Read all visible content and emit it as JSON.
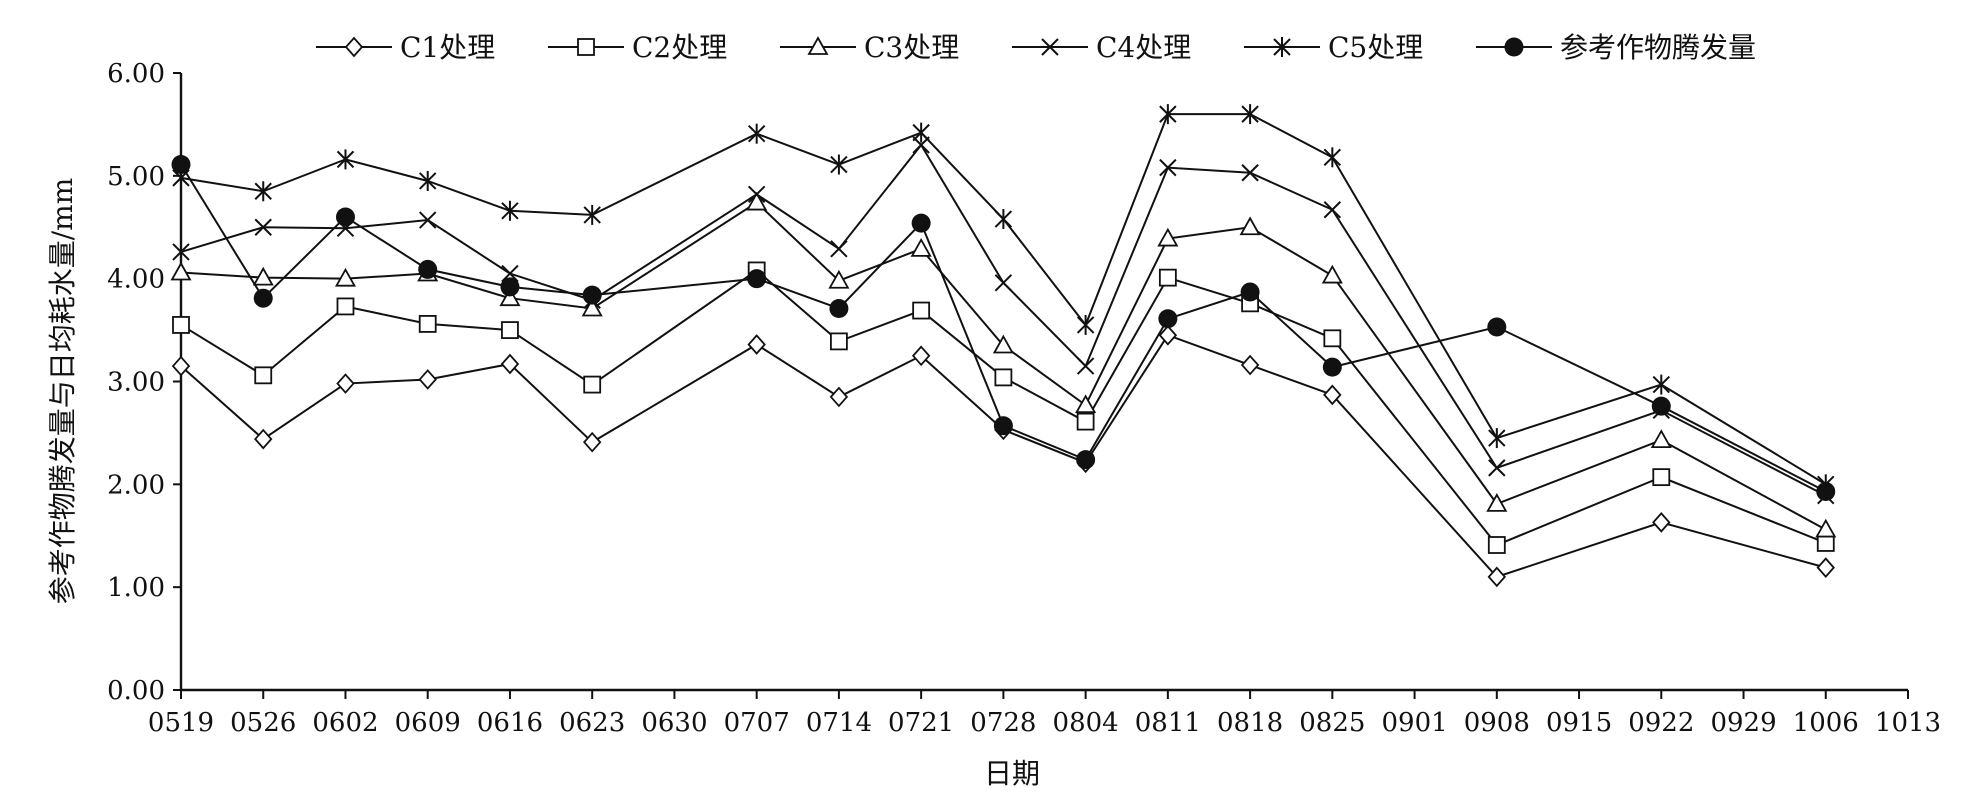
{
  "chart_data": {
    "type": "line",
    "title": "",
    "xlabel": "日期",
    "ylabel": "参考作物腾发量与日均耗水量/mm",
    "categories": [
      "0519",
      "0526",
      "0602",
      "0609",
      "0616",
      "0623",
      "0630",
      "0707",
      "0714",
      "0721",
      "0728",
      "0804",
      "0811",
      "0818",
      "0825",
      "0901",
      "0908",
      "0915",
      "0922",
      "0929",
      "1006",
      "1013"
    ],
    "y_ticks": [
      "0.00",
      "1.00",
      "2.00",
      "3.00",
      "4.00",
      "5.00",
      "6.00"
    ],
    "ylim": [
      0,
      6
    ],
    "grid": false,
    "legend_position": "top",
    "series": [
      {
        "name": "C1处理",
        "marker": "diamond",
        "x": [
          "0519",
          "0526",
          "0602",
          "0609",
          "0616",
          "0623",
          "0707",
          "0714",
          "0721",
          "0728",
          "0804",
          "0811",
          "0818",
          "0825",
          "0908",
          "0922",
          "1006"
        ],
        "values": [
          3.15,
          2.44,
          2.98,
          3.02,
          3.17,
          2.41,
          3.36,
          2.85,
          3.25,
          2.53,
          2.21,
          3.45,
          3.16,
          2.87,
          1.1,
          1.63,
          1.19
        ]
      },
      {
        "name": "C2处理",
        "marker": "square",
        "x": [
          "0519",
          "0526",
          "0602",
          "0609",
          "0616",
          "0623",
          "0707",
          "0714",
          "0721",
          "0728",
          "0804",
          "0811",
          "0818",
          "0825",
          "0908",
          "0922",
          "1006"
        ],
        "values": [
          3.55,
          3.06,
          3.73,
          3.56,
          3.5,
          2.97,
          4.08,
          3.39,
          3.69,
          3.04,
          2.61,
          4.01,
          3.76,
          3.42,
          1.41,
          2.07,
          1.43
        ]
      },
      {
        "name": "C3处理",
        "marker": "triangle",
        "x": [
          "0519",
          "0526",
          "0602",
          "0609",
          "0616",
          "0623",
          "0707",
          "0714",
          "0721",
          "0728",
          "0804",
          "0811",
          "0818",
          "0825",
          "0908",
          "0922",
          "1006"
        ],
        "values": [
          4.06,
          4.01,
          4.0,
          4.05,
          3.81,
          3.71,
          4.74,
          3.98,
          4.29,
          3.35,
          2.77,
          4.39,
          4.5,
          4.03,
          1.81,
          2.43,
          1.56
        ]
      },
      {
        "name": "C4处理",
        "marker": "x",
        "x": [
          "0519",
          "0526",
          "0602",
          "0609",
          "0616",
          "0623",
          "0707",
          "0714",
          "0721",
          "0728",
          "0804",
          "0811",
          "0818",
          "0825",
          "0908",
          "0922",
          "1006"
        ],
        "values": [
          4.26,
          4.5,
          4.49,
          4.57,
          4.05,
          3.79,
          4.82,
          4.29,
          5.3,
          3.96,
          3.15,
          5.08,
          5.03,
          4.67,
          2.16,
          2.72,
          1.89
        ]
      },
      {
        "name": "C5处理",
        "marker": "asterisk",
        "x": [
          "0519",
          "0526",
          "0602",
          "0609",
          "0616",
          "0623",
          "0707",
          "0714",
          "0721",
          "0728",
          "0804",
          "0811",
          "0818",
          "0825",
          "0908",
          "0922",
          "1006"
        ],
        "values": [
          4.98,
          4.85,
          5.16,
          4.95,
          4.66,
          4.62,
          5.41,
          5.11,
          5.42,
          4.58,
          3.55,
          5.6,
          5.6,
          5.18,
          2.45,
          2.97,
          2.0
        ]
      },
      {
        "name": "参考作物腾发量",
        "marker": "dot",
        "x": [
          "0519",
          "0526",
          "0602",
          "0609",
          "0616",
          "0623",
          "0707",
          "0714",
          "0721",
          "0728",
          "0804",
          "0811",
          "0818",
          "0825",
          "0908",
          "0922",
          "1006"
        ],
        "values": [
          5.11,
          3.81,
          4.6,
          4.09,
          3.92,
          3.84,
          4.0,
          3.71,
          4.54,
          2.57,
          2.24,
          3.61,
          3.87,
          3.14,
          3.53,
          2.76,
          1.93
        ]
      }
    ]
  },
  "colors": {
    "ink": "#111111",
    "background": "#ffffff"
  }
}
